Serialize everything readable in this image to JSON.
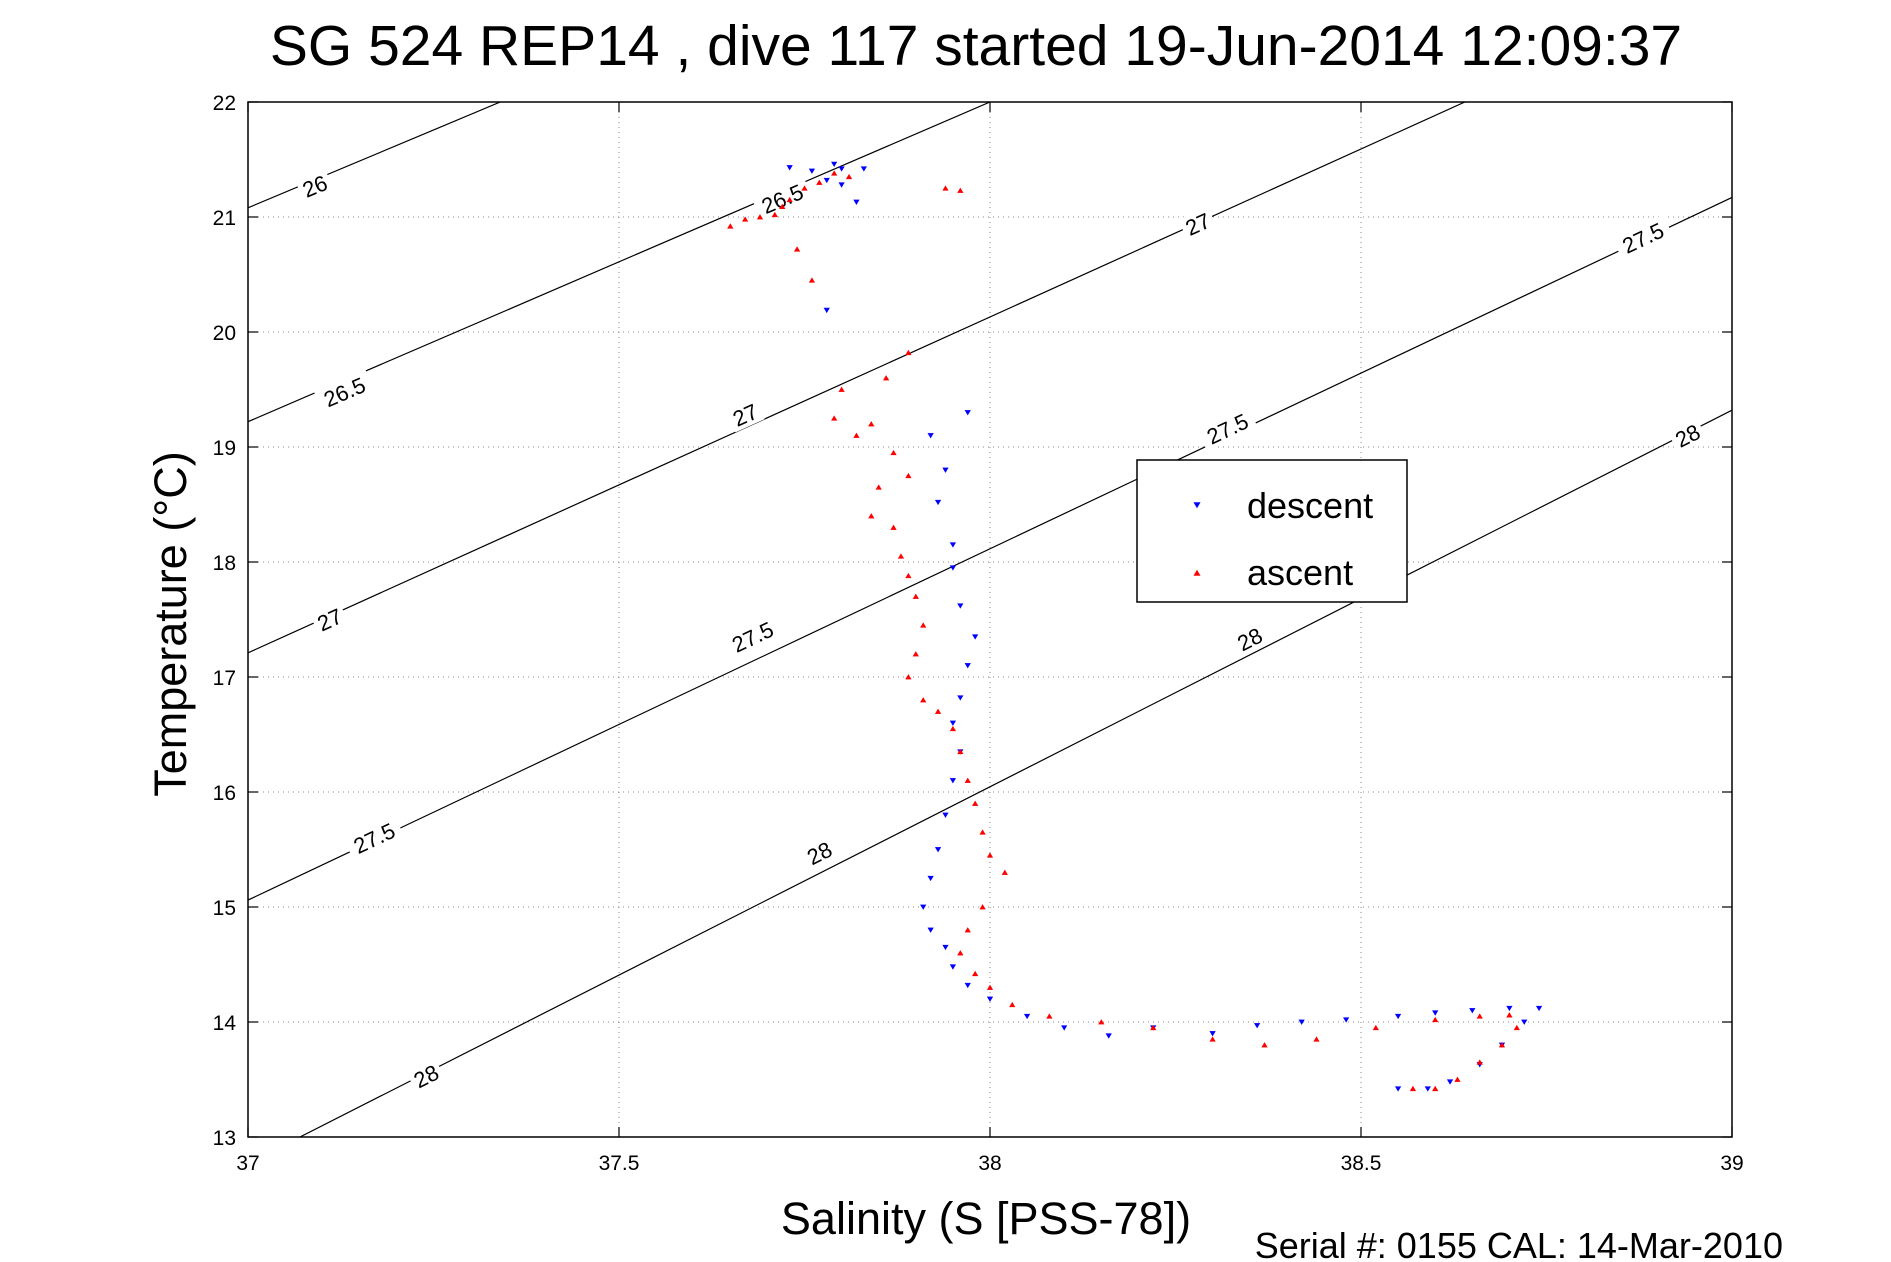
{
  "chart_data": {
    "type": "scatter",
    "title": "SG 524   REP14  , dive 117 started 19-Jun-2014 12:09:37",
    "xlabel": "Salinity (S [PSS-78])",
    "ylabel": "Temperature (°C)",
    "xlim": [
      37,
      39
    ],
    "ylim": [
      13,
      22
    ],
    "xticks": [
      "37",
      "37.5",
      "38",
      "38.5",
      "39"
    ],
    "yticks": [
      "13",
      "14",
      "15",
      "16",
      "17",
      "18",
      "19",
      "20",
      "21",
      "22"
    ],
    "grid": true,
    "legend_position": "right-center",
    "footer": "Serial #: 0155  CAL: 14-Mar-2010",
    "contours": [
      {
        "label": "26",
        "points": [
          [
            37.0,
            21.08
          ],
          [
            37.34,
            22.0
          ]
        ],
        "label_at": [
          [
            37.09,
            21.27
          ]
        ]
      },
      {
        "label": "26.5",
        "points": [
          [
            37.0,
            19.22
          ],
          [
            38.0,
            22.0
          ]
        ],
        "label_at": [
          [
            37.13,
            19.48
          ],
          [
            37.72,
            21.16
          ]
        ]
      },
      {
        "label": "27",
        "points": [
          [
            37.0,
            17.21
          ],
          [
            38.64,
            22.0
          ]
        ],
        "label_at": [
          [
            37.11,
            17.5
          ],
          [
            37.67,
            19.28
          ],
          [
            38.28,
            20.94
          ]
        ]
      },
      {
        "label": "27.5",
        "points": [
          [
            37.0,
            15.06
          ],
          [
            39.0,
            21.17
          ]
        ],
        "label_at": [
          [
            37.17,
            15.6
          ],
          [
            37.68,
            17.35
          ],
          [
            38.32,
            19.16
          ],
          [
            38.88,
            20.82
          ]
        ]
      },
      {
        "label": "28",
        "points": [
          [
            37.07,
            13.0
          ],
          [
            39.0,
            19.32
          ]
        ],
        "label_at": [
          [
            37.24,
            13.53
          ],
          [
            37.77,
            15.47
          ],
          [
            38.35,
            17.33
          ],
          [
            38.94,
            19.1
          ]
        ]
      }
    ],
    "series": [
      {
        "name": "descent",
        "color": "#0000ff",
        "marker": "triangle-down",
        "points": [
          [
            37.73,
            21.43
          ],
          [
            37.76,
            21.4
          ],
          [
            37.79,
            21.46
          ],
          [
            37.8,
            21.42
          ],
          [
            37.83,
            21.42
          ],
          [
            37.78,
            21.32
          ],
          [
            37.8,
            21.28
          ],
          [
            37.82,
            21.13
          ],
          [
            37.78,
            20.19
          ],
          [
            37.97,
            19.3
          ],
          [
            37.92,
            19.1
          ],
          [
            37.94,
            18.8
          ],
          [
            37.93,
            18.52
          ],
          [
            37.95,
            18.15
          ],
          [
            37.95,
            17.95
          ],
          [
            37.96,
            17.62
          ],
          [
            37.98,
            17.35
          ],
          [
            37.97,
            17.1
          ],
          [
            37.96,
            16.82
          ],
          [
            37.95,
            16.6
          ],
          [
            37.96,
            16.35
          ],
          [
            37.95,
            16.1
          ],
          [
            37.94,
            15.8
          ],
          [
            37.93,
            15.5
          ],
          [
            37.92,
            15.25
          ],
          [
            37.91,
            15.0
          ],
          [
            37.92,
            14.8
          ],
          [
            37.94,
            14.65
          ],
          [
            37.95,
            14.48
          ],
          [
            37.97,
            14.32
          ],
          [
            38.0,
            14.2
          ],
          [
            38.05,
            14.05
          ],
          [
            38.1,
            13.95
          ],
          [
            38.16,
            13.88
          ],
          [
            38.22,
            13.95
          ],
          [
            38.3,
            13.9
          ],
          [
            38.36,
            13.97
          ],
          [
            38.42,
            14.0
          ],
          [
            38.48,
            14.02
          ],
          [
            38.55,
            14.05
          ],
          [
            38.6,
            14.08
          ],
          [
            38.65,
            14.1
          ],
          [
            38.7,
            14.12
          ],
          [
            38.74,
            14.12
          ],
          [
            38.72,
            14.0
          ],
          [
            38.69,
            13.8
          ],
          [
            38.66,
            13.63
          ],
          [
            38.62,
            13.48
          ],
          [
            38.59,
            13.42
          ],
          [
            38.55,
            13.42
          ]
        ]
      },
      {
        "name": "ascent",
        "color": "#ff0000",
        "marker": "triangle-up",
        "points": [
          [
            37.65,
            20.92
          ],
          [
            37.67,
            20.98
          ],
          [
            37.69,
            21.0
          ],
          [
            37.71,
            21.02
          ],
          [
            37.72,
            21.09
          ],
          [
            37.73,
            21.15
          ],
          [
            37.75,
            21.25
          ],
          [
            37.77,
            21.3
          ],
          [
            37.79,
            21.38
          ],
          [
            37.81,
            21.35
          ],
          [
            37.74,
            20.72
          ],
          [
            37.76,
            20.45
          ],
          [
            37.94,
            21.25
          ],
          [
            37.96,
            21.23
          ],
          [
            37.89,
            19.82
          ],
          [
            37.86,
            19.6
          ],
          [
            37.8,
            19.5
          ],
          [
            37.79,
            19.25
          ],
          [
            37.84,
            19.2
          ],
          [
            37.82,
            19.1
          ],
          [
            37.87,
            18.95
          ],
          [
            37.89,
            18.75
          ],
          [
            37.85,
            18.65
          ],
          [
            37.84,
            18.4
          ],
          [
            37.87,
            18.3
          ],
          [
            37.88,
            18.05
          ],
          [
            37.89,
            17.88
          ],
          [
            37.9,
            17.7
          ],
          [
            37.91,
            17.45
          ],
          [
            37.9,
            17.2
          ],
          [
            37.89,
            17.0
          ],
          [
            37.91,
            16.8
          ],
          [
            37.93,
            16.7
          ],
          [
            37.95,
            16.55
          ],
          [
            37.96,
            16.35
          ],
          [
            37.97,
            16.1
          ],
          [
            37.98,
            15.9
          ],
          [
            37.99,
            15.65
          ],
          [
            38.0,
            15.45
          ],
          [
            38.02,
            15.3
          ],
          [
            37.99,
            15.0
          ],
          [
            37.97,
            14.8
          ],
          [
            37.96,
            14.6
          ],
          [
            37.98,
            14.42
          ],
          [
            38.0,
            14.3
          ],
          [
            38.03,
            14.15
          ],
          [
            38.08,
            14.05
          ],
          [
            38.15,
            14.0
          ],
          [
            38.22,
            13.95
          ],
          [
            38.3,
            13.85
          ],
          [
            38.37,
            13.8
          ],
          [
            38.44,
            13.85
          ],
          [
            38.52,
            13.95
          ],
          [
            38.6,
            14.02
          ],
          [
            38.66,
            14.05
          ],
          [
            38.7,
            14.06
          ],
          [
            38.71,
            13.95
          ],
          [
            38.69,
            13.8
          ],
          [
            38.66,
            13.65
          ],
          [
            38.63,
            13.5
          ],
          [
            38.6,
            13.42
          ],
          [
            38.57,
            13.42
          ]
        ]
      }
    ]
  }
}
